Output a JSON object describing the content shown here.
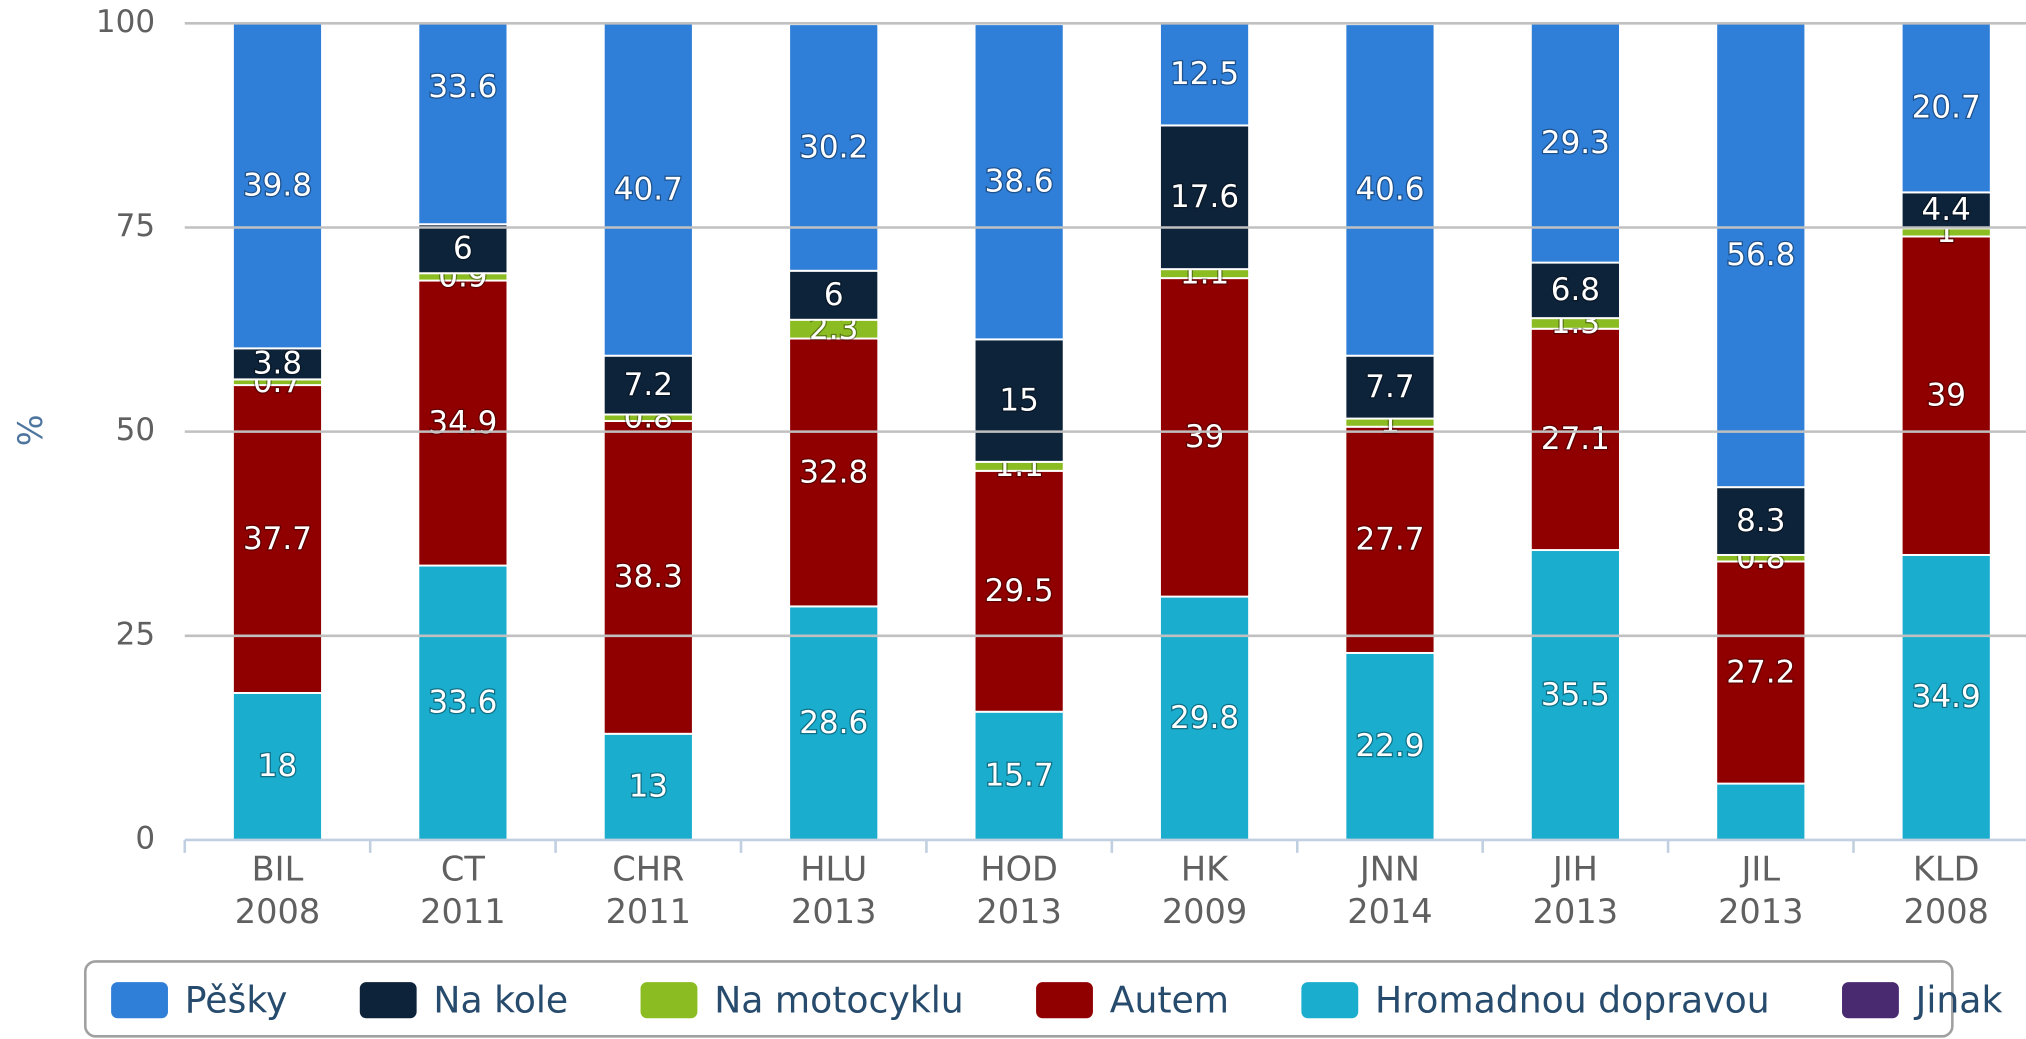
{
  "chart_data": {
    "type": "stacked_bar",
    "y_label": "%",
    "categories": [
      [
        "BIL",
        "2008"
      ],
      [
        "CT",
        "2011"
      ],
      [
        "CHR",
        "2011"
      ],
      [
        "HLU",
        "2013"
      ],
      [
        "HOD",
        "2013"
      ],
      [
        "HK",
        "2009"
      ],
      [
        "JNN",
        "2014"
      ],
      [
        "JIH",
        "2013"
      ],
      [
        "JIL",
        "2013"
      ],
      [
        "KLD",
        "2008"
      ]
    ],
    "series": [
      {
        "name": "Hromadnou dopravou",
        "color": "#1aadce",
        "values": [
          18,
          33.6,
          13,
          28.6,
          15.7,
          29.8,
          22.9,
          35.5,
          6.9,
          34.9
        ],
        "value_labels": [
          "18",
          "33.6",
          "13",
          "28.6",
          "15.7",
          "29.8",
          "22.9",
          "35.5",
          null,
          "34.9"
        ]
      },
      {
        "name": "Autem",
        "color": "#910000",
        "values": [
          37.7,
          34.9,
          38.3,
          32.8,
          29.5,
          39,
          27.7,
          27.1,
          27.2,
          39
        ]
      },
      {
        "name": "Na motocyklu",
        "color": "#8bbc21",
        "values": [
          0.7,
          0.9,
          0.8,
          2.3,
          1.1,
          1.1,
          1,
          1.3,
          0.8,
          1
        ]
      },
      {
        "name": "Na kole",
        "color": "#0d233a",
        "values": [
          3.8,
          6,
          7.2,
          6,
          15,
          17.6,
          7.7,
          6.8,
          8.3,
          4.4
        ]
      },
      {
        "name": "Pěšky",
        "color": "#2f7ed8",
        "values": [
          39.8,
          33.6,
          40.7,
          30.2,
          38.6,
          12.5,
          40.6,
          29.3,
          56.8,
          20.7
        ]
      },
      {
        "name": "Jinak",
        "color": "#492970",
        "values": [
          0,
          0,
          0,
          0,
          0,
          0,
          0,
          0,
          0,
          0
        ]
      }
    ],
    "legend_order": [
      4,
      3,
      2,
      1,
      0,
      5
    ],
    "ylim": [
      0,
      100
    ],
    "yticks": [
      0,
      25,
      50,
      75,
      100
    ],
    "grid": true,
    "legend": "bottom"
  }
}
